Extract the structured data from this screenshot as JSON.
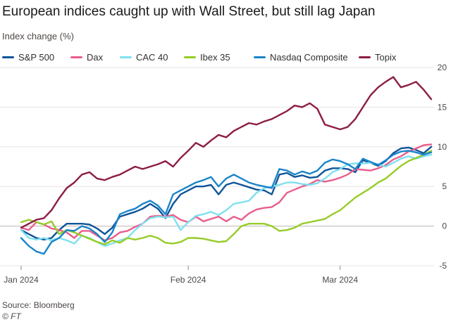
{
  "header": {
    "title": "European indices caught up with Wall Street, but still lag Japan",
    "subtitle": "Index change (%)"
  },
  "footer": {
    "source": "Source: Bloomberg",
    "credit": "© FT"
  },
  "chart_data": {
    "type": "line",
    "title": "European indices caught up with Wall Street, but still lag Japan",
    "ylabel": "Index change (%)",
    "xlabel": "",
    "ylim": [
      -5,
      20
    ],
    "y_ticks": [
      -5,
      0,
      5,
      10,
      15,
      20
    ],
    "x_tick_labels": [
      {
        "label": "Jan 2024",
        "index": 0
      },
      {
        "label": "Feb 2024",
        "index": 22
      },
      {
        "label": "Mar 2024",
        "index": 42
      }
    ],
    "grid": true,
    "legend_position": "top",
    "n_points": 55,
    "series": [
      {
        "name": "S&P 500",
        "color": "#0f5499",
        "values": [
          -0.5,
          -1.0,
          -1.5,
          -1.7,
          -1.5,
          -0.5,
          0.3,
          0.3,
          0.3,
          0.2,
          -0.3,
          -1.0,
          -0.2,
          1.2,
          1.5,
          1.8,
          2.2,
          2.8,
          2.2,
          1.0,
          2.8,
          4.0,
          4.5,
          5.0,
          5.0,
          5.2,
          4.0,
          5.2,
          5.5,
          5.2,
          4.9,
          4.6,
          4.5,
          4.0,
          6.5,
          6.7,
          6.2,
          6.4,
          6.1,
          6.2,
          7.0,
          7.3,
          7.3,
          7.2,
          6.8,
          8.3,
          8.0,
          7.6,
          8.2,
          9.2,
          9.8,
          9.9,
          9.6,
          9.2,
          10.0
        ]
      },
      {
        "name": "Dax",
        "color": "#e95d8c",
        "values": [
          -0.2,
          -0.5,
          0.5,
          0.2,
          -0.3,
          -0.5,
          -0.8,
          -1.5,
          -0.6,
          -0.6,
          -1.2,
          -1.8,
          -1.5,
          -0.8,
          -0.6,
          -0.1,
          0.3,
          1.2,
          1.3,
          1.2,
          1.4,
          0.8,
          0.5,
          1.2,
          0.6,
          0.9,
          1.2,
          0.6,
          1.2,
          0.8,
          1.6,
          2.1,
          2.3,
          2.4,
          3.0,
          4.2,
          4.6,
          5.0,
          5.3,
          5.8,
          5.6,
          5.8,
          6.1,
          6.5,
          7.2,
          7.1,
          7.0,
          7.3,
          7.7,
          8.4,
          8.8,
          9.4,
          9.8,
          10.2,
          10.3
        ]
      },
      {
        "name": "CAC 40",
        "color": "#7fe0ef",
        "values": [
          -0.5,
          -1.5,
          -1.7,
          -1.5,
          -1.8,
          -1.5,
          -1.8,
          -2.2,
          -1.2,
          -1.5,
          -2.0,
          -2.5,
          -2.2,
          -1.8,
          -1.5,
          -0.5,
          0.3,
          1.0,
          1.2,
          1.1,
          1.2,
          -0.5,
          0.5,
          1.3,
          1.5,
          1.8,
          1.4,
          2.0,
          2.8,
          3.0,
          3.2,
          4.2,
          4.8,
          5.0,
          5.2,
          5.5,
          5.5,
          5.3,
          5.2,
          5.4,
          6.0,
          6.8,
          7.2,
          7.8,
          7.9,
          7.9,
          8.0,
          7.8,
          7.5,
          8.0,
          8.5,
          8.8,
          8.5,
          8.8,
          9.0
        ]
      },
      {
        "name": "Ibex 35",
        "color": "#96cc28",
        "values": [
          0.5,
          0.8,
          0.5,
          0.2,
          0.6,
          -1.0,
          -0.5,
          -0.8,
          -1.2,
          -1.6,
          -2.0,
          -2.3,
          -1.8,
          -2.1,
          -1.5,
          -1.7,
          -1.5,
          -1.2,
          -1.5,
          -2.1,
          -2.2,
          -2.0,
          -1.5,
          -1.5,
          -1.6,
          -1.8,
          -2.0,
          -1.9,
          -1.0,
          0.0,
          0.3,
          0.3,
          0.3,
          0.0,
          -0.6,
          -0.5,
          -0.2,
          0.3,
          0.5,
          0.7,
          0.9,
          1.5,
          2.0,
          2.8,
          3.6,
          4.2,
          4.8,
          5.5,
          6.0,
          6.8,
          7.6,
          8.2,
          8.6,
          9.0,
          9.5
        ]
      },
      {
        "name": "Nasdaq Composite",
        "color": "#1a84c9",
        "values": [
          -1.5,
          -2.5,
          -3.2,
          -3.5,
          -2.0,
          -1.5,
          -0.5,
          -0.6,
          0.0,
          -0.3,
          -1.0,
          -2.0,
          -0.8,
          1.5,
          1.9,
          2.2,
          2.8,
          3.2,
          2.6,
          1.5,
          4.0,
          4.5,
          5.0,
          5.5,
          5.8,
          6.2,
          5.0,
          6.0,
          6.5,
          6.0,
          5.5,
          5.2,
          5.0,
          4.8,
          7.2,
          7.0,
          6.5,
          6.9,
          6.6,
          7.0,
          8.0,
          8.4,
          8.2,
          7.8,
          7.2,
          8.5,
          8.1,
          7.7,
          8.3,
          9.0,
          9.4,
          9.5,
          9.3,
          9.0,
          9.3
        ]
      },
      {
        "name": "Topix",
        "color": "#8c1d46",
        "values": [
          -0.2,
          0.3,
          0.8,
          1.0,
          2.0,
          3.5,
          4.8,
          5.5,
          6.5,
          6.8,
          6.0,
          5.8,
          6.2,
          6.5,
          7.0,
          7.5,
          7.2,
          7.5,
          7.8,
          8.2,
          7.5,
          8.6,
          9.5,
          10.5,
          10.0,
          10.8,
          11.5,
          11.2,
          12.0,
          12.5,
          13.0,
          12.8,
          13.2,
          13.5,
          14.0,
          14.5,
          15.2,
          15.0,
          15.5,
          14.8,
          12.8,
          12.5,
          12.2,
          12.5,
          13.5,
          15.0,
          16.5,
          17.5,
          18.2,
          18.8,
          17.5,
          17.8,
          18.2,
          17.2,
          16.0
        ]
      }
    ]
  }
}
